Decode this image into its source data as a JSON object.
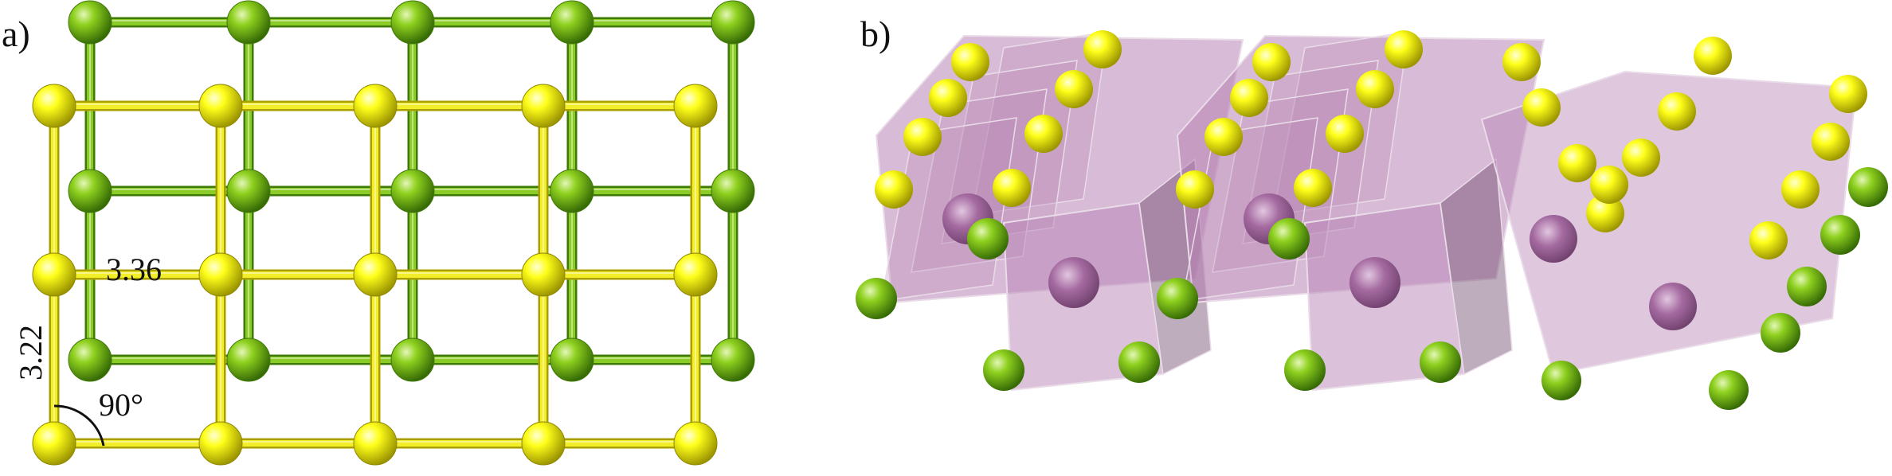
{
  "panels": {
    "a": {
      "label": "a)"
    },
    "b": {
      "label": "b)"
    }
  },
  "annotations": {
    "horizontal_bond": "3.36",
    "vertical_bond": "3.22",
    "angle": "90°"
  },
  "colors": {
    "yellow_atom": "#ffff1a",
    "yellow_atom_dark": "#a9a000",
    "green_atom": "#8fd11f",
    "green_atom_dark": "#3f7a06",
    "yellow_bond": "#f2ef2a",
    "green_bond": "#8ccc26",
    "polyhedron_fill": "#b884b5",
    "polyhedron_edge": "#e9dce8",
    "center_atom": "#a46aa0"
  },
  "lattice": {
    "yellow_rows": 3,
    "yellow_cols": 5,
    "green_rows": 3,
    "green_cols": 5
  }
}
